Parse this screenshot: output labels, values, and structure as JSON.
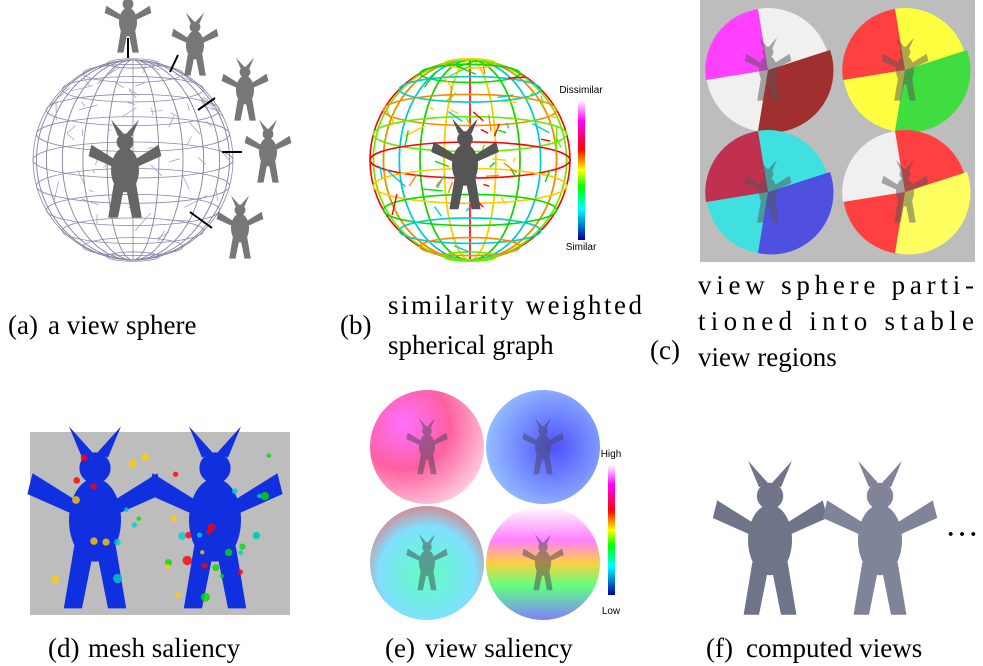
{
  "panels": [
    {
      "label": "(a)",
      "caption_lines": [
        "a view sphere"
      ]
    },
    {
      "label": "(b)",
      "caption_lines": [
        "similarity weighted",
        "spherical graph"
      ],
      "colorbar": {
        "top": "Dissimilar",
        "bottom": "Similar"
      }
    },
    {
      "label": "(c)",
      "caption_lines": [
        "view sphere parti-",
        "tioned into stable",
        "view regions"
      ]
    },
    {
      "label": "(d)",
      "caption_lines": [
        "mesh saliency"
      ]
    },
    {
      "label": "(e)",
      "caption_lines": [
        "view saliency"
      ],
      "colorbar": {
        "top": "High",
        "bottom": "Low"
      }
    },
    {
      "label": "(f)",
      "caption_lines": [
        "computed views"
      ],
      "ellipsis": "···"
    }
  ]
}
